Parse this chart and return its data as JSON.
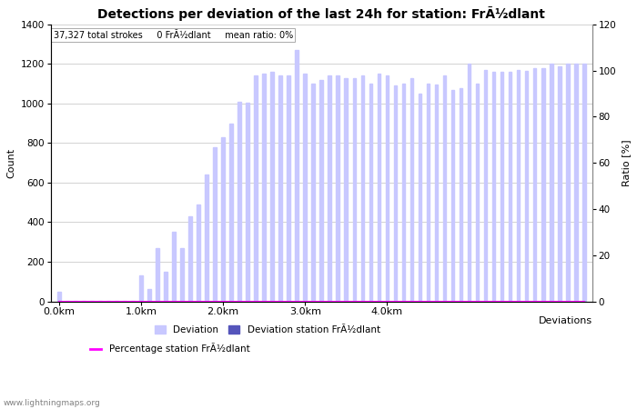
{
  "title": "Detections per deviation of the last 24h for station: FrÃ½dlant",
  "subtitle": "37,327 total strokes     0 FrÃ½dlant     mean ratio: 0%",
  "xlabel": "Deviations",
  "ylabel_left": "Count",
  "ylabel_right": "Ratio [%]",
  "watermark": "www.lightningmaps.org",
  "bar_values": [
    50,
    3,
    3,
    3,
    3,
    3,
    3,
    3,
    3,
    3,
    130,
    60,
    270,
    150,
    350,
    270,
    430,
    490,
    640,
    780,
    830,
    900,
    1010,
    1005,
    1140,
    1150,
    1160,
    1140,
    1140,
    1270,
    1150,
    1100,
    1120,
    1140,
    1140,
    1130,
    1130,
    1140,
    1100,
    1150,
    1140,
    1090,
    1100,
    1130,
    1050,
    1100,
    1095,
    1140,
    1070,
    1080,
    1200,
    1100,
    1170,
    1160,
    1160,
    1160,
    1170,
    1165,
    1180,
    1180,
    1200,
    1190,
    1200,
    1200,
    1200
  ],
  "station_bar_values": [
    0,
    0,
    0,
    0,
    0,
    0,
    0,
    0,
    0,
    0,
    0,
    0,
    0,
    0,
    0,
    0,
    0,
    0,
    0,
    0,
    0,
    0,
    0,
    0,
    0,
    0,
    0,
    0,
    0,
    0,
    0,
    0,
    0,
    0,
    0,
    0,
    0,
    0,
    0,
    0,
    0,
    0,
    0,
    0,
    0,
    0,
    0,
    0,
    0,
    0,
    0,
    0,
    0,
    0,
    0,
    0,
    0,
    0,
    0,
    0,
    0,
    0,
    0,
    0,
    0
  ],
  "percentage_values": [
    0,
    0,
    0,
    0,
    0,
    0,
    0,
    0,
    0,
    0,
    0,
    0,
    0,
    0,
    0,
    0,
    0,
    0,
    0,
    0,
    0,
    0,
    0,
    0,
    0,
    0,
    0,
    0,
    0,
    0,
    0,
    0,
    0,
    0,
    0,
    0,
    0,
    0,
    0,
    0,
    0,
    0,
    0,
    0,
    0,
    0,
    0,
    0,
    0,
    0,
    0,
    0,
    0,
    0,
    0,
    0,
    0,
    0,
    0,
    0,
    0,
    0,
    0,
    0,
    0
  ],
  "bar_color_light": "#c8c8ff",
  "bar_color_dark": "#5555bb",
  "line_color": "#ff00ff",
  "background_color": "#ffffff",
  "grid_color": "#c0c0c0",
  "ylim_left": [
    0,
    1400
  ],
  "ylim_right": [
    0,
    120
  ],
  "yticks_left": [
    0,
    200,
    400,
    600,
    800,
    1000,
    1200,
    1400
  ],
  "yticks_right": [
    0,
    20,
    40,
    60,
    80,
    100,
    120
  ],
  "n_bars": 65,
  "bar_width": 0.4
}
